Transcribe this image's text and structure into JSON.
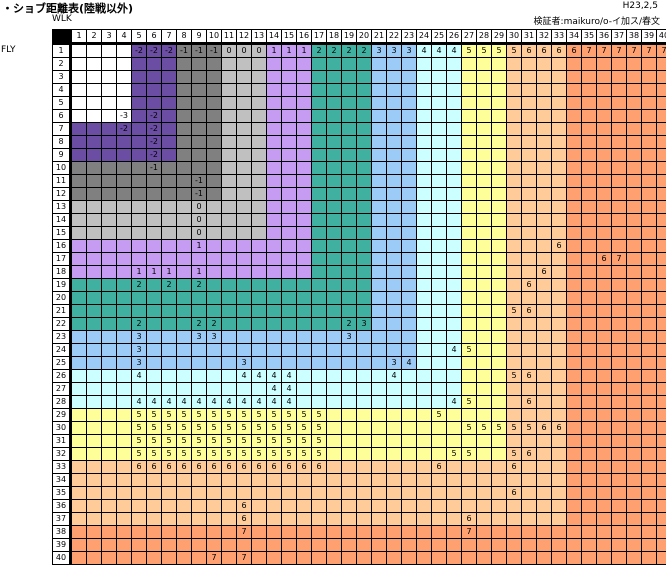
{
  "title": "・ショブ距離表(陸戦以外)",
  "date": "H23,2,5",
  "credit": "検証者:maikuro/o-イ加ス/春文",
  "wlk_label": "WLK",
  "fly_label": "FLY",
  "columns": [
    1,
    2,
    3,
    4,
    5,
    6,
    7,
    8,
    9,
    10,
    11,
    12,
    13,
    14,
    15,
    16,
    17,
    18,
    19,
    20,
    21,
    22,
    23,
    24,
    25,
    26,
    27,
    28,
    29,
    30,
    31,
    32,
    33,
    34,
    35,
    36,
    37,
    38,
    39,
    40
  ],
  "rows": [
    1,
    2,
    3,
    4,
    5,
    6,
    7,
    8,
    9,
    10,
    11,
    12,
    13,
    14,
    15,
    16,
    17,
    18,
    19,
    20,
    21,
    22,
    23,
    24,
    25,
    26,
    27,
    28,
    29,
    30,
    31,
    32,
    33,
    34,
    35,
    36,
    37,
    38,
    39,
    40
  ],
  "zone_colors": {
    "-3": "#ffffff",
    "-2": "#6b4ea3",
    "-1": "#808080",
    "0": "#c0c0c0",
    "1": "#c59cf2",
    "2": "#40b0a0",
    "3": "#9ccbf7",
    "4": "#ccffff",
    "5": "#ffff99",
    "6": "#ffcc99",
    "7": "#ffa070"
  },
  "zones": [
    {
      "value": -3,
      "min_row": 1,
      "min_col": 1
    },
    {
      "value": -2,
      "min_row": 7,
      "min_col": 5
    },
    {
      "value": -1,
      "min_row": 10,
      "min_col": 8
    },
    {
      "value": 0,
      "min_row": 13,
      "min_col": 11
    },
    {
      "value": 1,
      "min_row": 16,
      "min_col": 14
    },
    {
      "value": 2,
      "min_row": 19,
      "min_col": 17
    },
    {
      "value": 3,
      "min_row": 23,
      "min_col": 21
    },
    {
      "value": 4,
      "min_row": 26,
      "min_col": 24
    },
    {
      "value": 5,
      "min_row": 29,
      "min_col": 27
    },
    {
      "value": 6,
      "min_row": 33,
      "min_col": 30
    },
    {
      "value": 7,
      "min_row": 38,
      "min_col": 34
    }
  ],
  "cell_values": [
    {
      "r": 1,
      "c": 5,
      "v": "-2"
    },
    {
      "r": 1,
      "c": 6,
      "v": "-2"
    },
    {
      "r": 1,
      "c": 7,
      "v": "-2"
    },
    {
      "r": 1,
      "c": 8,
      "v": "-1"
    },
    {
      "r": 1,
      "c": 9,
      "v": "-1"
    },
    {
      "r": 1,
      "c": 10,
      "v": "-1"
    },
    {
      "r": 1,
      "c": 11,
      "v": "0"
    },
    {
      "r": 1,
      "c": 12,
      "v": "0"
    },
    {
      "r": 1,
      "c": 13,
      "v": "0"
    },
    {
      "r": 1,
      "c": 14,
      "v": "1"
    },
    {
      "r": 1,
      "c": 15,
      "v": "1"
    },
    {
      "r": 1,
      "c": 16,
      "v": "1"
    },
    {
      "r": 1,
      "c": 17,
      "v": "2"
    },
    {
      "r": 1,
      "c": 18,
      "v": "2"
    },
    {
      "r": 1,
      "c": 19,
      "v": "2"
    },
    {
      "r": 1,
      "c": 20,
      "v": "2"
    },
    {
      "r": 1,
      "c": 21,
      "v": "3"
    },
    {
      "r": 1,
      "c": 22,
      "v": "3"
    },
    {
      "r": 1,
      "c": 23,
      "v": "3"
    },
    {
      "r": 1,
      "c": 24,
      "v": "4"
    },
    {
      "r": 1,
      "c": 25,
      "v": "4"
    },
    {
      "r": 1,
      "c": 26,
      "v": "4"
    },
    {
      "r": 1,
      "c": 27,
      "v": "5"
    },
    {
      "r": 1,
      "c": 28,
      "v": "5"
    },
    {
      "r": 1,
      "c": 29,
      "v": "5"
    },
    {
      "r": 1,
      "c": 30,
      "v": "5"
    },
    {
      "r": 1,
      "c": 31,
      "v": "6"
    },
    {
      "r": 1,
      "c": 32,
      "v": "6"
    },
    {
      "r": 1,
      "c": 33,
      "v": "6"
    },
    {
      "r": 1,
      "c": 34,
      "v": "6"
    },
    {
      "r": 1,
      "c": 35,
      "v": "7"
    },
    {
      "r": 1,
      "c": 36,
      "v": "7"
    },
    {
      "r": 1,
      "c": 37,
      "v": "7"
    },
    {
      "r": 1,
      "c": 38,
      "v": "7"
    },
    {
      "r": 1,
      "c": 39,
      "v": "7"
    },
    {
      "r": 1,
      "c": 40,
      "v": "7"
    },
    {
      "r": 6,
      "c": 4,
      "v": "-3"
    },
    {
      "r": 6,
      "c": 6,
      "v": "-2"
    },
    {
      "r": 7,
      "c": 4,
      "v": "-2"
    },
    {
      "r": 7,
      "c": 6,
      "v": "-2"
    },
    {
      "r": 8,
      "c": 6,
      "v": "-2"
    },
    {
      "r": 9,
      "c": 6,
      "v": "-2"
    },
    {
      "r": 10,
      "c": 6,
      "v": "-1"
    },
    {
      "r": 11,
      "c": 9,
      "v": "-1"
    },
    {
      "r": 12,
      "c": 9,
      "v": "-1"
    },
    {
      "r": 13,
      "c": 9,
      "v": "0"
    },
    {
      "r": 14,
      "c": 9,
      "v": "0"
    },
    {
      "r": 15,
      "c": 9,
      "v": "0"
    },
    {
      "r": 16,
      "c": 9,
      "v": "1"
    },
    {
      "r": 16,
      "c": 33,
      "v": "6"
    },
    {
      "r": 17,
      "c": 36,
      "v": "6"
    },
    {
      "r": 17,
      "c": 37,
      "v": "7"
    },
    {
      "r": 18,
      "c": 5,
      "v": "1"
    },
    {
      "r": 18,
      "c": 6,
      "v": "1"
    },
    {
      "r": 18,
      "c": 7,
      "v": "1"
    },
    {
      "r": 18,
      "c": 9,
      "v": "1"
    },
    {
      "r": 18,
      "c": 32,
      "v": "6"
    },
    {
      "r": 19,
      "c": 5,
      "v": "2"
    },
    {
      "r": 19,
      "c": 7,
      "v": "2"
    },
    {
      "r": 19,
      "c": 9,
      "v": "2"
    },
    {
      "r": 19,
      "c": 31,
      "v": "6"
    },
    {
      "r": 21,
      "c": 30,
      "v": "5"
    },
    {
      "r": 21,
      "c": 31,
      "v": "6"
    },
    {
      "r": 22,
      "c": 5,
      "v": "2"
    },
    {
      "r": 22,
      "c": 9,
      "v": "2"
    },
    {
      "r": 22,
      "c": 10,
      "v": "2"
    },
    {
      "r": 22,
      "c": 19,
      "v": "2"
    },
    {
      "r": 22,
      "c": 20,
      "v": "3"
    },
    {
      "r": 23,
      "c": 5,
      "v": "3"
    },
    {
      "r": 23,
      "c": 9,
      "v": "3"
    },
    {
      "r": 23,
      "c": 10,
      "v": "3"
    },
    {
      "r": 23,
      "c": 19,
      "v": "3"
    },
    {
      "r": 24,
      "c": 5,
      "v": "3"
    },
    {
      "r": 24,
      "c": 26,
      "v": "4"
    },
    {
      "r": 24,
      "c": 27,
      "v": "5"
    },
    {
      "r": 25,
      "c": 5,
      "v": "3"
    },
    {
      "r": 25,
      "c": 12,
      "v": "3"
    },
    {
      "r": 25,
      "c": 22,
      "v": "3"
    },
    {
      "r": 25,
      "c": 23,
      "v": "4"
    },
    {
      "r": 26,
      "c": 5,
      "v": "4"
    },
    {
      "r": 26,
      "c": 12,
      "v": "4"
    },
    {
      "r": 26,
      "c": 13,
      "v": "4"
    },
    {
      "r": 26,
      "c": 14,
      "v": "4"
    },
    {
      "r": 26,
      "c": 15,
      "v": "4"
    },
    {
      "r": 26,
      "c": 22,
      "v": "4"
    },
    {
      "r": 26,
      "c": 30,
      "v": "5"
    },
    {
      "r": 26,
      "c": 31,
      "v": "6"
    },
    {
      "r": 27,
      "c": 14,
      "v": "4"
    },
    {
      "r": 27,
      "c": 15,
      "v": "4"
    },
    {
      "r": 28,
      "c": 5,
      "v": "4"
    },
    {
      "r": 28,
      "c": 6,
      "v": "4"
    },
    {
      "r": 28,
      "c": 7,
      "v": "4"
    },
    {
      "r": 28,
      "c": 8,
      "v": "4"
    },
    {
      "r": 28,
      "c": 9,
      "v": "4"
    },
    {
      "r": 28,
      "c": 10,
      "v": "4"
    },
    {
      "r": 28,
      "c": 11,
      "v": "4"
    },
    {
      "r": 28,
      "c": 12,
      "v": "4"
    },
    {
      "r": 28,
      "c": 13,
      "v": "4"
    },
    {
      "r": 28,
      "c": 14,
      "v": "4"
    },
    {
      "r": 28,
      "c": 15,
      "v": "4"
    },
    {
      "r": 28,
      "c": 26,
      "v": "4"
    },
    {
      "r": 28,
      "c": 27,
      "v": "5"
    },
    {
      "r": 28,
      "c": 31,
      "v": "6"
    },
    {
      "r": 29,
      "c": 5,
      "v": "5"
    },
    {
      "r": 29,
      "c": 6,
      "v": "5"
    },
    {
      "r": 29,
      "c": 7,
      "v": "5"
    },
    {
      "r": 29,
      "c": 8,
      "v": "5"
    },
    {
      "r": 29,
      "c": 9,
      "v": "5"
    },
    {
      "r": 29,
      "c": 10,
      "v": "5"
    },
    {
      "r": 29,
      "c": 11,
      "v": "5"
    },
    {
      "r": 29,
      "c": 12,
      "v": "5"
    },
    {
      "r": 29,
      "c": 13,
      "v": "5"
    },
    {
      "r": 29,
      "c": 14,
      "v": "5"
    },
    {
      "r": 29,
      "c": 15,
      "v": "5"
    },
    {
      "r": 29,
      "c": 16,
      "v": "5"
    },
    {
      "r": 29,
      "c": 17,
      "v": "5"
    },
    {
      "r": 29,
      "c": 25,
      "v": "5"
    },
    {
      "r": 30,
      "c": 5,
      "v": "5"
    },
    {
      "r": 30,
      "c": 6,
      "v": "5"
    },
    {
      "r": 30,
      "c": 7,
      "v": "5"
    },
    {
      "r": 30,
      "c": 8,
      "v": "5"
    },
    {
      "r": 30,
      "c": 9,
      "v": "5"
    },
    {
      "r": 30,
      "c": 10,
      "v": "5"
    },
    {
      "r": 30,
      "c": 11,
      "v": "5"
    },
    {
      "r": 30,
      "c": 12,
      "v": "5"
    },
    {
      "r": 30,
      "c": 13,
      "v": "5"
    },
    {
      "r": 30,
      "c": 14,
      "v": "5"
    },
    {
      "r": 30,
      "c": 15,
      "v": "5"
    },
    {
      "r": 30,
      "c": 16,
      "v": "5"
    },
    {
      "r": 30,
      "c": 17,
      "v": "5"
    },
    {
      "r": 30,
      "c": 27,
      "v": "5"
    },
    {
      "r": 30,
      "c": 28,
      "v": "5"
    },
    {
      "r": 30,
      "c": 29,
      "v": "5"
    },
    {
      "r": 30,
      "c": 30,
      "v": "5"
    },
    {
      "r": 30,
      "c": 31,
      "v": "5"
    },
    {
      "r": 30,
      "c": 32,
      "v": "6"
    },
    {
      "r": 30,
      "c": 33,
      "v": "6"
    },
    {
      "r": 31,
      "c": 5,
      "v": "5"
    },
    {
      "r": 31,
      "c": 6,
      "v": "5"
    },
    {
      "r": 31,
      "c": 7,
      "v": "5"
    },
    {
      "r": 31,
      "c": 8,
      "v": "5"
    },
    {
      "r": 31,
      "c": 9,
      "v": "5"
    },
    {
      "r": 31,
      "c": 10,
      "v": "5"
    },
    {
      "r": 31,
      "c": 11,
      "v": "5"
    },
    {
      "r": 31,
      "c": 12,
      "v": "5"
    },
    {
      "r": 31,
      "c": 13,
      "v": "5"
    },
    {
      "r": 31,
      "c": 14,
      "v": "5"
    },
    {
      "r": 31,
      "c": 15,
      "v": "5"
    },
    {
      "r": 31,
      "c": 16,
      "v": "5"
    },
    {
      "r": 31,
      "c": 17,
      "v": "5"
    },
    {
      "r": 32,
      "c": 5,
      "v": "5"
    },
    {
      "r": 32,
      "c": 6,
      "v": "5"
    },
    {
      "r": 32,
      "c": 7,
      "v": "5"
    },
    {
      "r": 32,
      "c": 8,
      "v": "5"
    },
    {
      "r": 32,
      "c": 9,
      "v": "5"
    },
    {
      "r": 32,
      "c": 10,
      "v": "5"
    },
    {
      "r": 32,
      "c": 11,
      "v": "5"
    },
    {
      "r": 32,
      "c": 12,
      "v": "5"
    },
    {
      "r": 32,
      "c": 13,
      "v": "5"
    },
    {
      "r": 32,
      "c": 14,
      "v": "5"
    },
    {
      "r": 32,
      "c": 15,
      "v": "5"
    },
    {
      "r": 32,
      "c": 16,
      "v": "5"
    },
    {
      "r": 32,
      "c": 17,
      "v": "5"
    },
    {
      "r": 32,
      "c": 26,
      "v": "5"
    },
    {
      "r": 32,
      "c": 27,
      "v": "5"
    },
    {
      "r": 32,
      "c": 30,
      "v": "5"
    },
    {
      "r": 32,
      "c": 31,
      "v": "6"
    },
    {
      "r": 33,
      "c": 5,
      "v": "6"
    },
    {
      "r": 33,
      "c": 6,
      "v": "6"
    },
    {
      "r": 33,
      "c": 7,
      "v": "6"
    },
    {
      "r": 33,
      "c": 8,
      "v": "6"
    },
    {
      "r": 33,
      "c": 9,
      "v": "6"
    },
    {
      "r": 33,
      "c": 10,
      "v": "6"
    },
    {
      "r": 33,
      "c": 11,
      "v": "6"
    },
    {
      "r": 33,
      "c": 12,
      "v": "6"
    },
    {
      "r": 33,
      "c": 13,
      "v": "6"
    },
    {
      "r": 33,
      "c": 14,
      "v": "6"
    },
    {
      "r": 33,
      "c": 15,
      "v": "6"
    },
    {
      "r": 33,
      "c": 16,
      "v": "6"
    },
    {
      "r": 33,
      "c": 17,
      "v": "6"
    },
    {
      "r": 33,
      "c": 25,
      "v": "6"
    },
    {
      "r": 33,
      "c": 30,
      "v": "6"
    },
    {
      "r": 35,
      "c": 30,
      "v": "6"
    },
    {
      "r": 36,
      "c": 12,
      "v": "6"
    },
    {
      "r": 37,
      "c": 12,
      "v": "6"
    },
    {
      "r": 37,
      "c": 27,
      "v": "6"
    },
    {
      "r": 38,
      "c": 12,
      "v": "7"
    },
    {
      "r": 38,
      "c": 27,
      "v": "7"
    },
    {
      "r": 40,
      "c": 10,
      "v": "7"
    },
    {
      "r": 40,
      "c": 12,
      "v": "7"
    }
  ]
}
